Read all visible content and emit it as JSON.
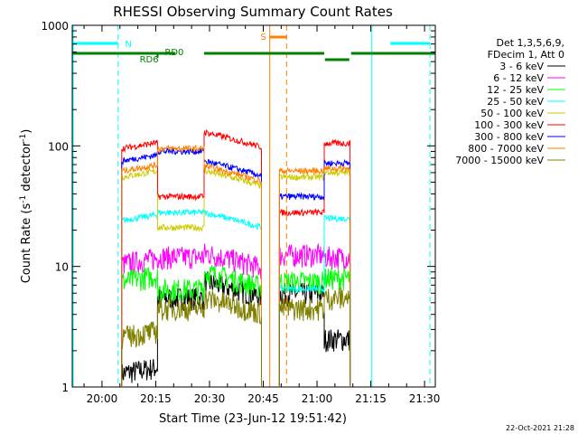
{
  "chart_data": {
    "type": "line",
    "title": "RHESSI Observing Summary Count Rates",
    "xlabel": "Start Time (23-Jun-12 19:51:42)",
    "ylabel_main": "Count Rate (s",
    "ylabel_sup1": "-1",
    "ylabel_mid": " detector",
    "ylabel_sup2": "-1",
    "ylabel_end": ")",
    "yscale": "log",
    "ylim": [
      1,
      1000
    ],
    "xlim_minutes": [
      1191.7,
      1293.0
    ],
    "x_ticks": [
      {
        "t": 1200,
        "label": "20:00"
      },
      {
        "t": 1215,
        "label": "20:15"
      },
      {
        "t": 1230,
        "label": "20:30"
      },
      {
        "t": 1245,
        "label": "20:45"
      },
      {
        "t": 1260,
        "label": "21:00"
      },
      {
        "t": 1275,
        "label": "21:15"
      },
      {
        "t": 1290,
        "label": "21:30"
      }
    ],
    "y_ticks": [
      {
        "v": 1,
        "label": "1"
      },
      {
        "v": 10,
        "label": "10"
      },
      {
        "v": 100,
        "label": "100"
      },
      {
        "v": 1000,
        "label": "1000"
      }
    ],
    "legend_placement": "right",
    "legend_header": [
      "Det 1,3,5,6,9,",
      "FDecim 1, Att 0"
    ],
    "series": [
      {
        "name": "3 - 6 keV",
        "color": "#000000",
        "levels": [
          1.3,
          5.5,
          7.5,
          6.0,
          2.5
        ]
      },
      {
        "name": "6 - 12 keV",
        "color": "#ff00ff",
        "levels": [
          10.5,
          12.0,
          13.0,
          12.5,
          12.0
        ]
      },
      {
        "name": "12 - 25 keV",
        "color": "#00ff00",
        "levels": [
          7.5,
          6.5,
          9.0,
          7.5,
          8.0
        ]
      },
      {
        "name": "25 - 50 keV",
        "color": "#00ffff",
        "levels": [
          24,
          28,
          28,
          6.5,
          25
        ]
      },
      {
        "name": "50 - 100 keV",
        "color": "#cccc00",
        "levels": [
          55,
          21,
          62,
          55,
          60
        ]
      },
      {
        "name": "100 - 300 keV",
        "color": "#ff0000",
        "levels": [
          95,
          38,
          130,
          28,
          105
        ]
      },
      {
        "name": "300 - 800 keV",
        "color": "#0000ff",
        "levels": [
          75,
          90,
          75,
          38,
          72
        ]
      },
      {
        "name": "800 - 7000 keV",
        "color": "#ff8000",
        "levels": [
          62,
          95,
          68,
          62,
          65
        ]
      },
      {
        "name": "7000 - 15000 keV",
        "color": "#808000",
        "levels": [
          2.6,
          4.5,
          5.5,
          4.5,
          5.5
        ]
      }
    ],
    "annotations": {
      "night_label": "N",
      "saa_label": "S",
      "rd0_label": "RD0",
      "rd6_label": "RD6",
      "timestamp": "22-Oct-2021 21:28"
    },
    "colors": {
      "frame": "#000000",
      "night": "#00ffff",
      "saa": "#ff8000",
      "decim": "#008000"
    }
  }
}
